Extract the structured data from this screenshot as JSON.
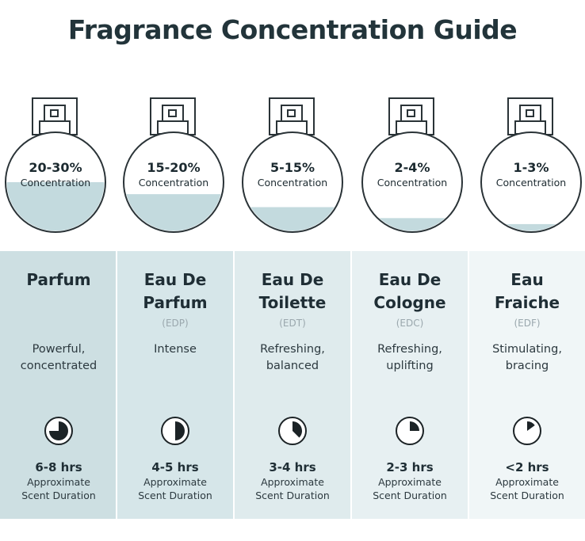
{
  "title": "Fragrance Concentration Guide",
  "colors": {
    "liquid": "#c3dade",
    "bottle_stroke": "#2a3337",
    "column_backgrounds": [
      "#cddfe2",
      "#d6e6e9",
      "#dfebed",
      "#e7f0f2",
      "#f0f6f7"
    ]
  },
  "types": [
    {
      "concentration": "20-30%",
      "concentration_label": "Concentration",
      "fill_level": 0.5,
      "name_line1": "Parfum",
      "name_line2": "",
      "abbr": "",
      "desc_line1": "Powerful,",
      "desc_line2": "concentrated",
      "duration_fraction": 0.75,
      "hours": "6-8 hrs",
      "duration_line1": "Approximate",
      "duration_line2": "Scent Duration"
    },
    {
      "concentration": "15-20%",
      "concentration_label": "Concentration",
      "fill_level": 0.38,
      "name_line1": "Eau De",
      "name_line2": "Parfum",
      "abbr": "(EDP)",
      "desc_line1": "Intense",
      "desc_line2": "",
      "duration_fraction": 0.5,
      "hours": "4-5 hrs",
      "duration_line1": "Approximate",
      "duration_line2": "Scent Duration"
    },
    {
      "concentration": "5-15%",
      "concentration_label": "Concentration",
      "fill_level": 0.25,
      "name_line1": "Eau De",
      "name_line2": "Toilette",
      "abbr": "(EDT)",
      "desc_line1": "Refreshing,",
      "desc_line2": "balanced",
      "duration_fraction": 0.375,
      "hours": "3-4 hrs",
      "duration_line1": "Approximate",
      "duration_line2": "Scent Duration"
    },
    {
      "concentration": "2-4%",
      "concentration_label": "Concentration",
      "fill_level": 0.14,
      "name_line1": "Eau De",
      "name_line2": "Cologne",
      "abbr": "(EDC)",
      "desc_line1": "Refreshing,",
      "desc_line2": "uplifting",
      "duration_fraction": 0.25,
      "hours": "2-3 hrs",
      "duration_line1": "Approximate",
      "duration_line2": "Scent Duration"
    },
    {
      "concentration": "1-3%",
      "concentration_label": "Concentration",
      "fill_level": 0.08,
      "name_line1": "Eau",
      "name_line2": "Fraiche",
      "abbr": "(EDF)",
      "desc_line1": "Stimulating,",
      "desc_line2": "bracing",
      "duration_fraction": 0.15,
      "hours": "<2 hrs",
      "duration_line1": "Approximate",
      "duration_line2": "Scent Duration"
    }
  ]
}
